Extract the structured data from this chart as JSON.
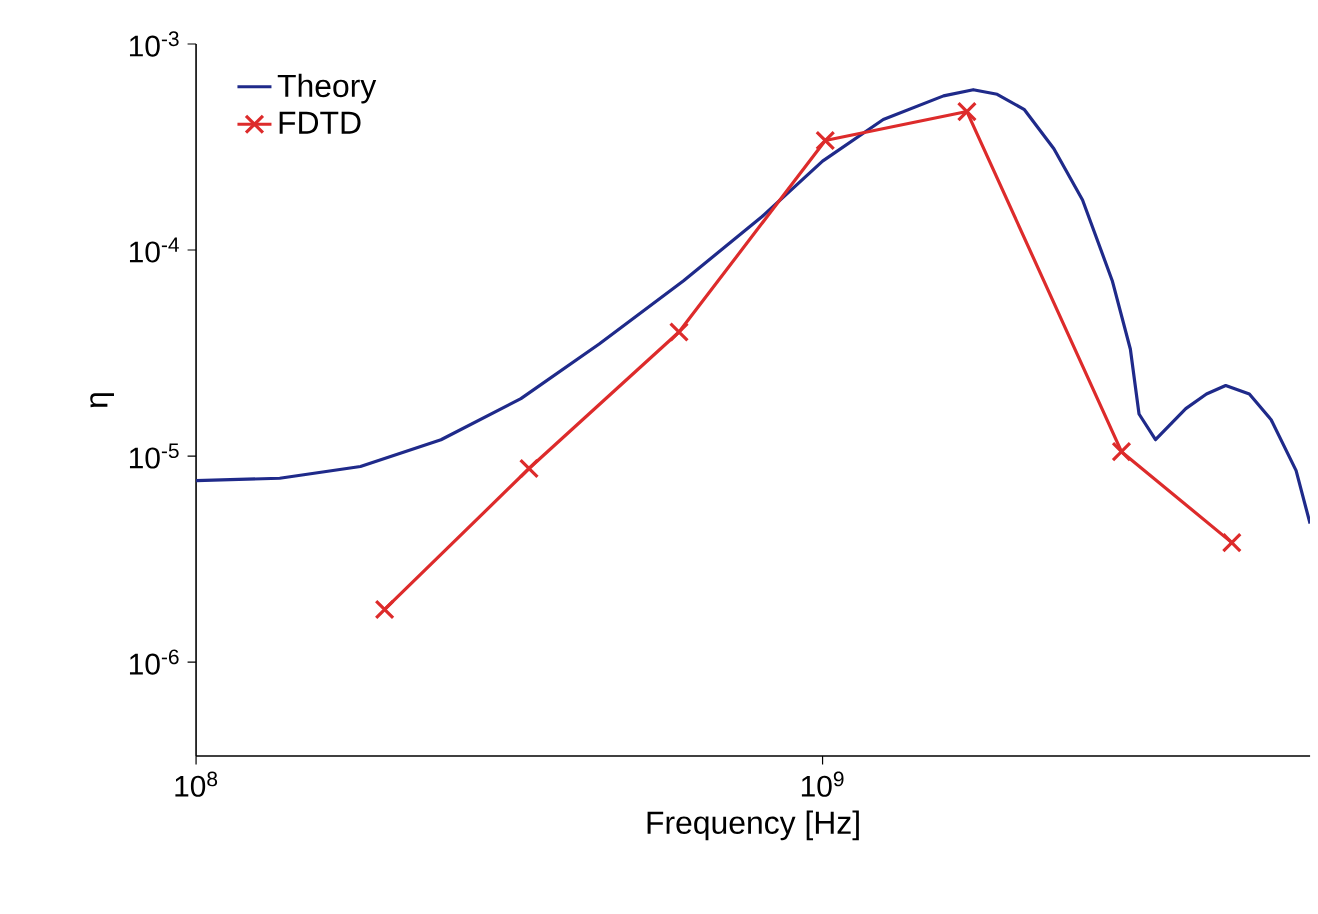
{
  "chart_data": {
    "type": "line",
    "xlabel": "Frequency [Hz]",
    "ylabel": "η",
    "log": "xy",
    "grid": false,
    "legend": "top left",
    "xlim": [
      100000000,
      6000000000
    ],
    "ylim": [
      3.5e-07,
      0.001
    ],
    "xticks": [
      {
        "value": 100000000,
        "label": "10$^{8}$"
      },
      {
        "value": 1000000000,
        "label": "10$^{9}$"
      }
    ],
    "yticks": [
      {
        "value": 1e-06,
        "label": "10$^{-6}$"
      },
      {
        "value": 1e-05,
        "label": "10$^{-5}$"
      },
      {
        "value": 0.0001,
        "label": "10$^{-4}$"
      },
      {
        "value": 0.001,
        "label": "10$^{-3}$"
      }
    ],
    "series": [
      {
        "name": "Theory",
        "color": "#1f2a8a",
        "marker": "none",
        "x": [
          100000000,
          136000000,
          183000000,
          246000000,
          330000000,
          440000000,
          600000000,
          800000000,
          1000000000,
          1250000000,
          1560000000,
          1740000000,
          1900000000,
          2100000000,
          2340000000,
          2600000000,
          2900000000,
          3100000000,
          3200000000,
          3400000000,
          3800000000,
          4100000000,
          4400000000,
          4800000000,
          5200000000,
          5700000000,
          6000000000
        ],
        "values": [
          7.6e-06,
          7.8e-06,
          8.9e-06,
          1.2e-05,
          1.9e-05,
          3.5e-05,
          7.1e-05,
          0.000145,
          0.00027,
          0.00043,
          0.00056,
          0.0006,
          0.00057,
          0.00048,
          0.00031,
          0.000175,
          7.1e-05,
          3.3e-05,
          1.6e-05,
          1.2e-05,
          1.7e-05,
          2e-05,
          2.2e-05,
          2e-05,
          1.5e-05,
          8.5e-06,
          4.7e-06
        ]
      },
      {
        "name": "FDTD",
        "color": "#dd2b2b",
        "marker": "cross",
        "x": [
          200000000,
          340000000,
          590000000,
          1010000000,
          1700000000,
          3000000000,
          4500000000
        ],
        "values": [
          1.8e-06,
          8.7e-06,
          4e-05,
          0.00034,
          0.00047,
          1.05e-05,
          3.8e-06
        ]
      }
    ]
  }
}
